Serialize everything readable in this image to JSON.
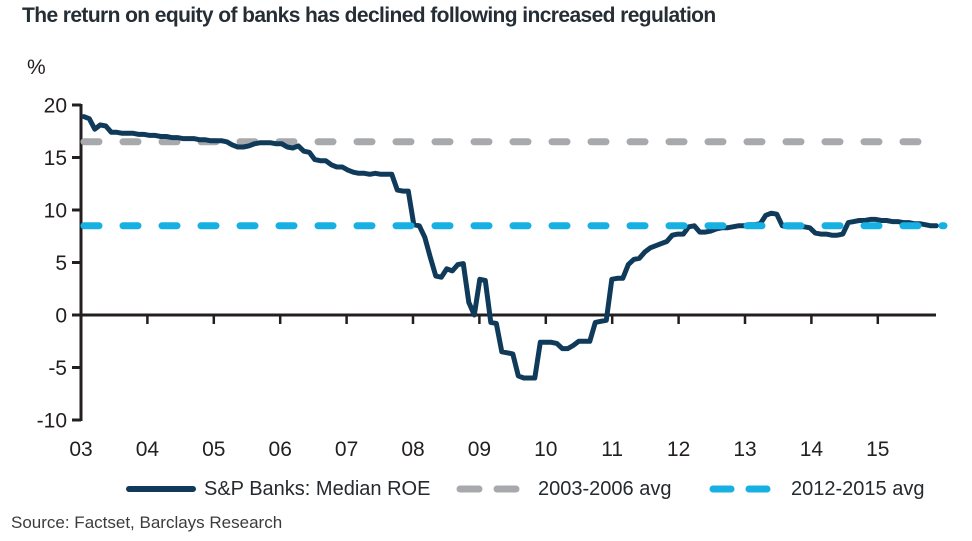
{
  "title": "The return on equity of banks has declined following increased regulation",
  "source": "Source: Factset, Barclays Research",
  "chart_data": {
    "type": "line",
    "unit_label": "%",
    "frequency": "monthly",
    "start": "2003-01",
    "end": "2015-12",
    "x_tick_labels": [
      "03",
      "04",
      "05",
      "06",
      "07",
      "08",
      "09",
      "10",
      "11",
      "12",
      "13",
      "14",
      "15"
    ],
    "y_ticks": [
      20,
      15,
      10,
      5,
      0,
      -5,
      -10
    ],
    "ylim": [
      -10,
      20
    ],
    "grid": false,
    "legend_position": "bottom",
    "axis_color": "#231f20",
    "series": [
      {
        "name": "S&P Banks: Median ROE",
        "color": "#103a5a",
        "style": "solid",
        "values": [
          18.9,
          18.7,
          17.7,
          18.1,
          18.0,
          17.4,
          17.4,
          17.3,
          17.3,
          17.3,
          17.2,
          17.2,
          17.1,
          17.1,
          17.0,
          17.0,
          16.9,
          16.9,
          16.8,
          16.8,
          16.8,
          16.7,
          16.7,
          16.6,
          16.6,
          16.6,
          16.5,
          16.2,
          16.0,
          16.0,
          16.1,
          16.3,
          16.4,
          16.4,
          16.4,
          16.3,
          16.3,
          16.0,
          15.9,
          16.1,
          15.6,
          15.5,
          14.8,
          14.7,
          14.7,
          14.3,
          14.1,
          14.1,
          13.8,
          13.6,
          13.5,
          13.5,
          13.4,
          13.5,
          13.4,
          13.4,
          13.4,
          11.9,
          11.8,
          11.8,
          8.6,
          8.5,
          7.4,
          5.5,
          3.7,
          3.6,
          4.4,
          4.2,
          4.8,
          4.9,
          1.2,
          0.0,
          3.4,
          3.3,
          -0.7,
          -0.8,
          -3.5,
          -3.6,
          -3.7,
          -5.8,
          -6.0,
          -6.0,
          -6.0,
          -2.6,
          -2.6,
          -2.6,
          -2.7,
          -3.2,
          -3.2,
          -2.9,
          -2.5,
          -2.5,
          -2.5,
          -0.7,
          -0.6,
          -0.5,
          3.4,
          3.5,
          3.5,
          4.8,
          5.3,
          5.4,
          6.0,
          6.4,
          6.6,
          6.8,
          7.0,
          7.6,
          7.7,
          7.7,
          8.4,
          8.5,
          7.9,
          7.9,
          8.0,
          8.2,
          8.3,
          8.3,
          8.4,
          8.5,
          8.5,
          8.6,
          8.6,
          8.7,
          9.5,
          9.7,
          9.6,
          8.5,
          8.4,
          8.4,
          8.4,
          8.4,
          8.3,
          7.8,
          7.7,
          7.7,
          7.6,
          7.6,
          7.7,
          8.8,
          8.9,
          9.0,
          9.0,
          9.1,
          9.1,
          9.0,
          9.0,
          8.9,
          8.9,
          8.8,
          8.8,
          8.7,
          8.7,
          8.6,
          8.5,
          8.5
        ]
      },
      {
        "name": "2003-2006 avg",
        "color": "#a7a9ac",
        "style": "dashed",
        "value": 16.5
      },
      {
        "name": "2012-2015 avg",
        "color": "#17b0e2",
        "style": "dashed",
        "value": 8.5
      }
    ]
  }
}
